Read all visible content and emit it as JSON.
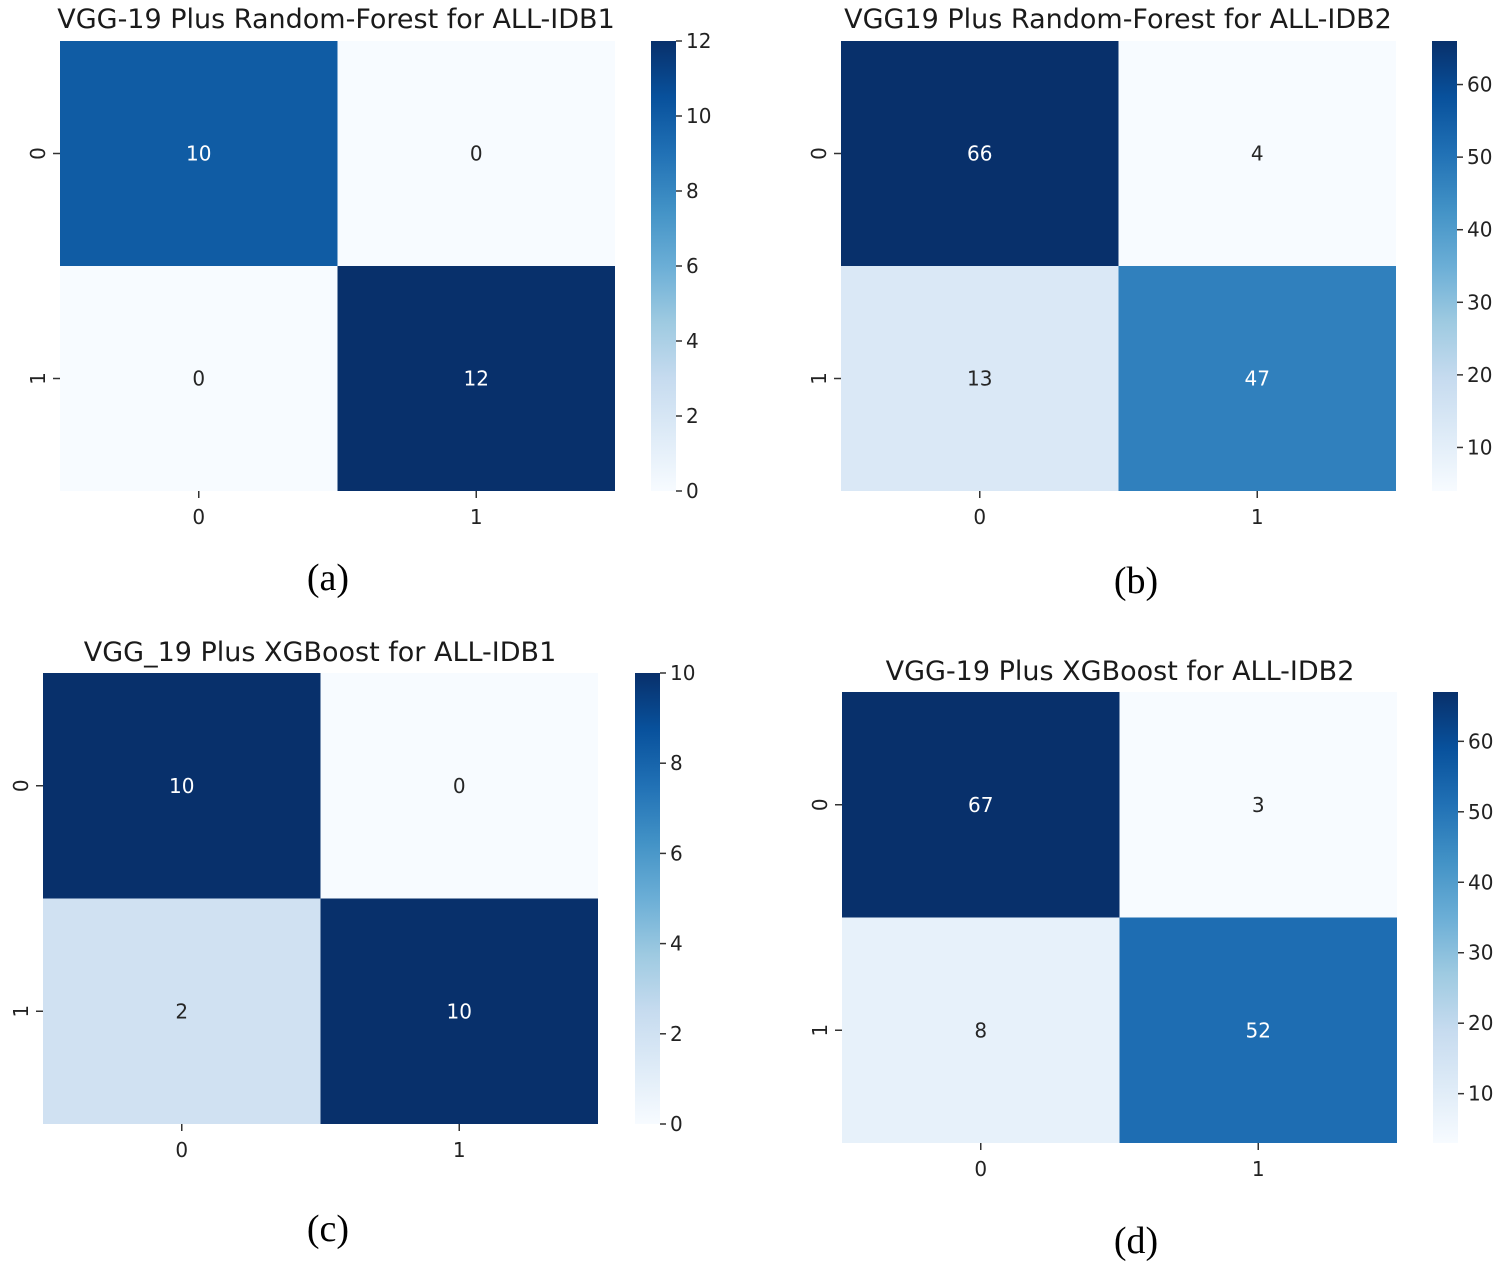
{
  "chart_data": [
    {
      "type": "heatmap",
      "panel_label": "(a)",
      "title": "VGG-19 Plus Random-Forest for ALL-IDB1",
      "row_labels": [
        "0",
        "1"
      ],
      "col_labels": [
        "0",
        "1"
      ],
      "values": [
        [
          10,
          0
        ],
        [
          0,
          12
        ]
      ],
      "colorbar": {
        "vmin": 0,
        "vmax": 12,
        "ticks": [
          "0",
          "2",
          "4",
          "6",
          "8",
          "10",
          "12"
        ]
      },
      "colormap": "Blues"
    },
    {
      "type": "heatmap",
      "panel_label": "(b)",
      "title": "VGG19 Plus Random-Forest for ALL-IDB2",
      "row_labels": [
        "0",
        "1"
      ],
      "col_labels": [
        "0",
        "1"
      ],
      "values": [
        [
          66,
          4
        ],
        [
          13,
          47
        ]
      ],
      "colorbar": {
        "vmin": 4,
        "vmax": 66,
        "ticks": [
          "10",
          "20",
          "30",
          "40",
          "50",
          "60"
        ]
      },
      "colormap": "Blues"
    },
    {
      "type": "heatmap",
      "panel_label": "(c)",
      "title": "VGG_19 Plus XGBoost for ALL-IDB1",
      "row_labels": [
        "0",
        "1"
      ],
      "col_labels": [
        "0",
        "1"
      ],
      "values": [
        [
          10,
          0
        ],
        [
          2,
          10
        ]
      ],
      "colorbar": {
        "vmin": 0,
        "vmax": 10,
        "ticks": [
          "0",
          "2",
          "4",
          "6",
          "8",
          "10"
        ]
      },
      "colormap": "Blues"
    },
    {
      "type": "heatmap",
      "panel_label": "(d)",
      "title": "VGG-19 Plus XGBoost for ALL-IDB2",
      "row_labels": [
        "0",
        "1"
      ],
      "col_labels": [
        "0",
        "1"
      ],
      "values": [
        [
          67,
          3
        ],
        [
          8,
          52
        ]
      ],
      "colorbar": {
        "vmin": 3,
        "vmax": 67,
        "ticks": [
          "10",
          "20",
          "30",
          "40",
          "50",
          "60"
        ]
      },
      "colormap": "Blues"
    }
  ]
}
